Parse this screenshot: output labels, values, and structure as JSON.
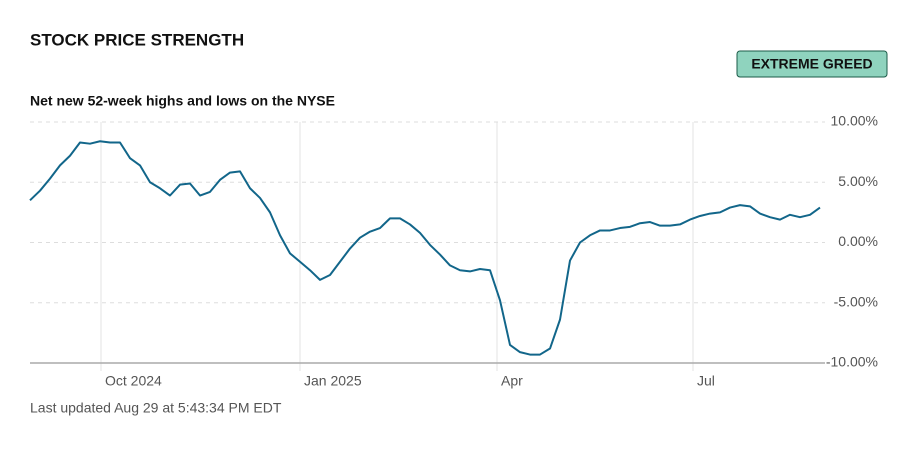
{
  "chart_data": {
    "type": "line",
    "title": "STOCK PRICE STRENGTH",
    "badge": "EXTREME GREED",
    "subtitle": "Net new 52-week highs and lows on the NYSE",
    "footnote": "Last updated Aug 29 at 5:43:34 PM EDT",
    "color": "#12668a",
    "values": [
      3.5,
      4.3,
      5.3,
      6.4,
      7.2,
      8.3,
      8.2,
      8.4,
      8.3,
      8.3,
      7.0,
      6.4,
      5.0,
      4.5,
      3.9,
      4.8,
      4.9,
      3.9,
      4.2,
      5.2,
      5.8,
      5.9,
      4.5,
      3.7,
      2.5,
      0.6,
      -0.9,
      -1.6,
      -2.3,
      -3.1,
      -2.7,
      -1.6,
      -0.5,
      0.4,
      0.9,
      1.2,
      2.0,
      2.0,
      1.5,
      0.8,
      -0.2,
      -1.0,
      -1.9,
      -2.3,
      -2.4,
      -2.2,
      -2.3,
      -4.8,
      -8.5,
      -9.1,
      -9.3,
      -9.3,
      -8.8,
      -6.4,
      -1.5,
      0.0,
      0.6,
      1.0,
      1.0,
      1.2,
      1.3,
      1.6,
      1.7,
      1.4,
      1.4,
      1.5,
      1.9,
      2.2,
      2.4,
      2.5,
      2.9,
      3.1,
      3.0,
      2.4,
      2.1,
      1.9,
      2.3,
      2.1,
      2.3,
      2.9
    ],
    "xlim": [
      0,
      79
    ],
    "xticks": [
      {
        "value": 7.1,
        "label": "Oct 2024"
      },
      {
        "value": 27,
        "label": "Jan 2025"
      },
      {
        "value": 46.7,
        "label": "Apr"
      },
      {
        "value": 66.3,
        "label": "Jul"
      }
    ],
    "ylim": [
      -10,
      10
    ],
    "yticks": [
      {
        "value": 10,
        "label": "10.00%"
      },
      {
        "value": 5,
        "label": "5.00%"
      },
      {
        "value": 0,
        "label": "0.00%"
      },
      {
        "value": -5,
        "label": "-5.00%"
      },
      {
        "value": -10,
        "label": "-10.00%"
      }
    ],
    "grid": true
  }
}
